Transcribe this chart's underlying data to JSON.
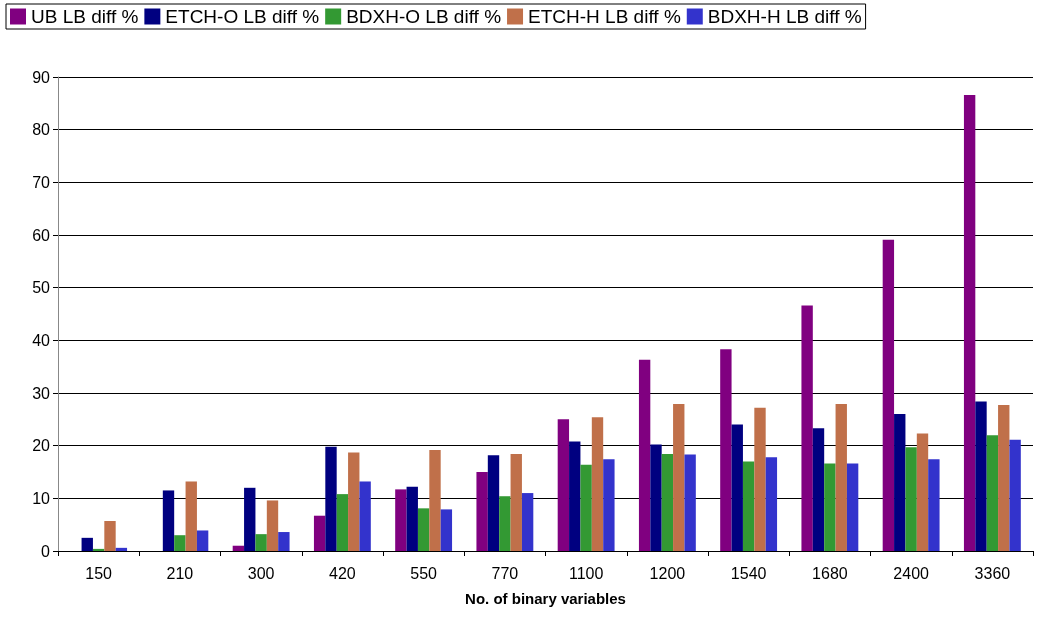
{
  "chart_data": {
    "type": "bar",
    "xlabel": "No. of binary variables",
    "categories": [
      "150",
      "210",
      "300",
      "420",
      "550",
      "770",
      "1100",
      "1200",
      "1540",
      "1680",
      "2400",
      "3360"
    ],
    "series": [
      {
        "name": "UB LB diff %",
        "color": "#800080",
        "values": [
          0,
          0,
          1,
          6.7,
          11.7,
          15,
          25,
          36.3,
          38.3,
          46.6,
          59.1,
          86.6
        ]
      },
      {
        "name": "ETCH-O LB diff %",
        "color": "#000080",
        "values": [
          2.5,
          11.5,
          12,
          19.8,
          12.2,
          18.2,
          20.8,
          20.2,
          24,
          23.3,
          26,
          28.4
        ]
      },
      {
        "name": "BDXH-O LB diff %",
        "color": "#339933",
        "values": [
          0.4,
          3,
          3.2,
          10.8,
          8.1,
          10.4,
          16.4,
          18.4,
          17,
          16.6,
          19.7,
          22
        ]
      },
      {
        "name": "ETCH-H LB diff %",
        "color": "#c0704a",
        "values": [
          5.7,
          13.2,
          9.6,
          18.7,
          19.2,
          18.4,
          25.4,
          27.9,
          27.2,
          27.9,
          22.3,
          27.7
        ]
      },
      {
        "name": "BDXH-H LB diff %",
        "color": "#3333cc",
        "values": [
          0.6,
          3.9,
          3.6,
          13.2,
          7.9,
          11,
          17.4,
          18.3,
          17.8,
          16.6,
          17.4,
          21.1
        ]
      }
    ],
    "ylim": [
      0,
      90
    ],
    "yticks": [
      0,
      10,
      20,
      30,
      40,
      50,
      60,
      70,
      80,
      90
    ],
    "grid": "y",
    "legend": "top"
  }
}
